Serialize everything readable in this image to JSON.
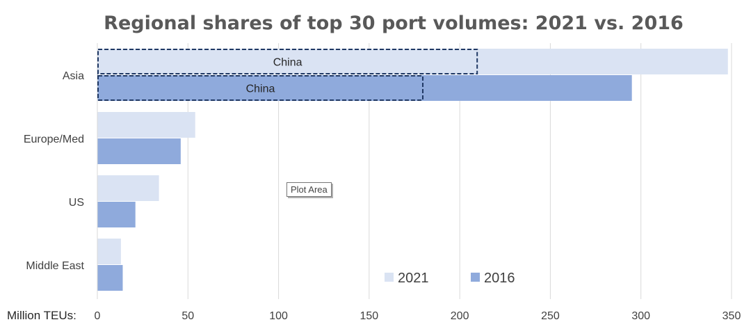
{
  "colors": {
    "series_2021": "#dae3f3",
    "series_2016": "#8faadc",
    "grid": "#d9d9d9",
    "annotation_border": "#1f3864"
  },
  "chart_data": {
    "type": "bar",
    "orientation": "horizontal",
    "title": "Regional shares of top 30 port volumes: 2021 vs. 2016",
    "unit_label": "Million TEUs:",
    "categories": [
      "Asia",
      "Europe/Med",
      "US",
      "Middle East"
    ],
    "series": [
      {
        "name": "2021",
        "values": [
          348,
          54,
          34,
          13
        ]
      },
      {
        "name": "2016",
        "values": [
          295,
          46,
          21,
          14
        ]
      }
    ],
    "annotations": [
      {
        "category": "Asia",
        "series": "2021",
        "label": "China",
        "value": 210
      },
      {
        "category": "Asia",
        "series": "2016",
        "label": "China",
        "value": 180
      }
    ],
    "xlim": [
      0,
      350
    ],
    "xticks": [
      0,
      50,
      100,
      150,
      200,
      250,
      300,
      350
    ],
    "grid": "vertical",
    "legend_position": "bottom-right"
  },
  "tooltip": "Plot Area"
}
